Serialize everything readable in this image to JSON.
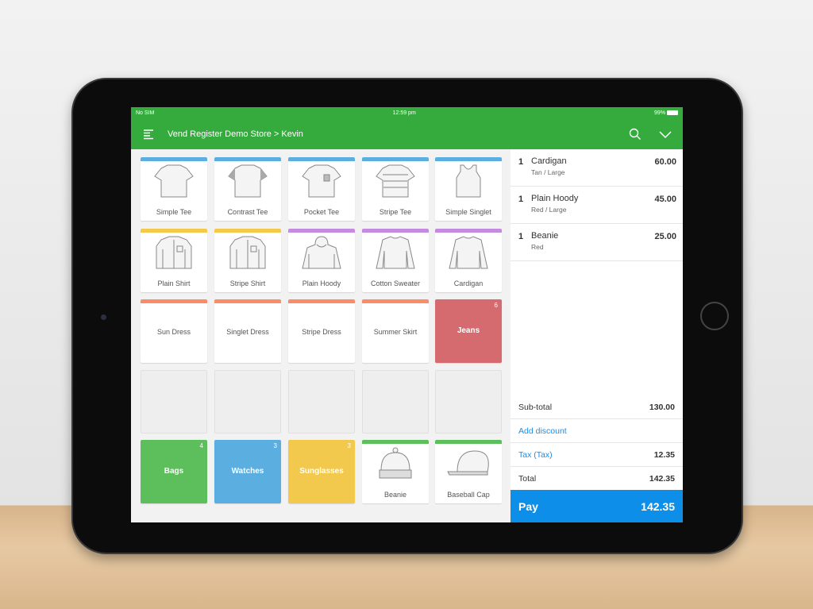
{
  "status": {
    "carrier": "No SIM",
    "time": "12:59 pm",
    "battery": "99%"
  },
  "header": {
    "title": "Vend Register Demo Store > Kevin",
    "menu_icon": "menu-icon",
    "search_icon": "search-icon",
    "dropdown_icon": "chevron-down-icon"
  },
  "colors": {
    "green": "#34ab3c",
    "blue": "#5aaee0",
    "yellow": "#f3c94d",
    "purple": "#c58be0",
    "orange": "#fb8c6a",
    "red": "#d66b6f",
    "pay": "#0d8fe9"
  },
  "tiles": [
    [
      {
        "label": "Simple Tee",
        "bar": "#5aaee0",
        "icon": "tee"
      },
      {
        "label": "Contrast Tee",
        "bar": "#5aaee0",
        "icon": "tee-contrast"
      },
      {
        "label": "Pocket Tee",
        "bar": "#5aaee0",
        "icon": "tee-pocket"
      },
      {
        "label": "Stripe Tee",
        "bar": "#5aaee0",
        "icon": "tee-stripe"
      },
      {
        "label": "Simple Singlet",
        "bar": "#5aaee0",
        "icon": "singlet"
      }
    ],
    [
      {
        "label": "Plain Shirt",
        "bar": "#f3c94d",
        "icon": "shirt"
      },
      {
        "label": "Stripe Shirt",
        "bar": "#f3c94d",
        "icon": "shirt"
      },
      {
        "label": "Plain Hoody",
        "bar": "#c58be0",
        "icon": "hoody"
      },
      {
        "label": "Cotton Sweater",
        "bar": "#c58be0",
        "icon": "sweater"
      },
      {
        "label": "Cardigan",
        "bar": "#c58be0",
        "icon": "sweater"
      }
    ],
    [
      {
        "label": "Sun Dress",
        "bar": "#fb8c6a"
      },
      {
        "label": "Singlet Dress",
        "bar": "#fb8c6a"
      },
      {
        "label": "Stripe Dress",
        "bar": "#fb8c6a"
      },
      {
        "label": "Summer Skirt",
        "bar": "#fb8c6a"
      },
      {
        "label": "Jeans",
        "category": "#d66b6f",
        "count": "6"
      }
    ],
    [
      {
        "empty": true
      },
      {
        "empty": true
      },
      {
        "empty": true
      },
      {
        "empty": true
      },
      {
        "empty": true
      }
    ],
    [
      {
        "label": "Bags",
        "category": "#5cbf5c",
        "count": "4"
      },
      {
        "label": "Watches",
        "category": "#5aaee0",
        "count": "3"
      },
      {
        "label": "Sunglasses",
        "category": "#f3c94d",
        "count": "3"
      },
      {
        "label": "Beanie",
        "bar": "#5cbf5c",
        "icon": "beanie"
      },
      {
        "label": "Baseball Cap",
        "bar": "#5cbf5c",
        "icon": "cap"
      }
    ]
  ],
  "sale": {
    "items": [
      {
        "qty": "1",
        "name": "Cardigan",
        "variant": "Tan / Large",
        "price": "60.00"
      },
      {
        "qty": "1",
        "name": "Plain Hoody",
        "variant": "Red / Large",
        "price": "45.00"
      },
      {
        "qty": "1",
        "name": "Beanie",
        "variant": "Red",
        "price": "25.00"
      }
    ],
    "subtotal_label": "Sub-total",
    "subtotal": "130.00",
    "discount_label": "Add discount",
    "tax_label": "Tax (Tax)",
    "tax": "12.35",
    "total_label": "Total",
    "total": "142.35",
    "pay_label": "Pay",
    "pay_amount": "142.35"
  }
}
